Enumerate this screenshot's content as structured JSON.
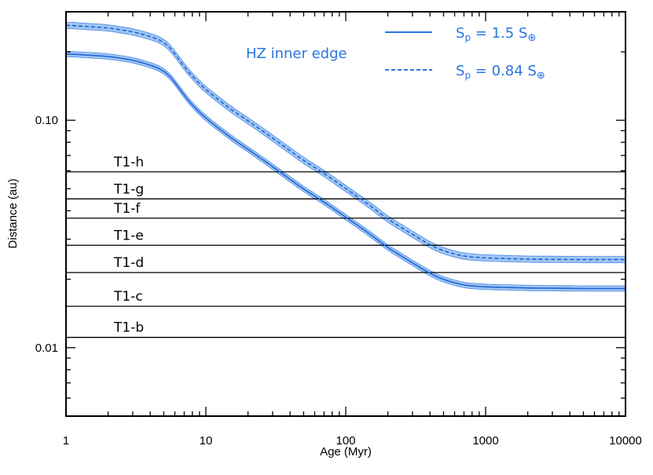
{
  "chart_data": {
    "type": "line",
    "xscale": "log",
    "yscale": "log",
    "xlim": [
      1,
      10000
    ],
    "ylim": [
      0.005,
      0.3
    ],
    "xlabel": "Age (Myr)",
    "ylabel": "Distance (au)",
    "xticks": [
      {
        "value": 1,
        "label": "1"
      },
      {
        "value": 10,
        "label": "10"
      },
      {
        "value": 100,
        "label": "100"
      },
      {
        "value": 1000,
        "label": "1000"
      },
      {
        "value": 10000,
        "label": "10000"
      }
    ],
    "yticks": [
      {
        "value": 0.01,
        "label": "0.01"
      },
      {
        "value": 0.1,
        "label": "0.10"
      }
    ],
    "annotation": "HZ inner edge",
    "legend": [
      {
        "label_main": "S",
        "label_sub": "p",
        "label_rest": " = 1.5 S",
        "symbol": "⊕",
        "style": "solid"
      },
      {
        "label_main": "S",
        "label_sub": "p",
        "label_rest": " = 0.84 S",
        "symbol": "⊕",
        "style": "dashed"
      }
    ],
    "planets": [
      {
        "name": "T1-b",
        "distance": 0.0111
      },
      {
        "name": "T1-c",
        "distance": 0.0152
      },
      {
        "name": "T1-d",
        "distance": 0.0214
      },
      {
        "name": "T1-e",
        "distance": 0.0282
      },
      {
        "name": "T1-f",
        "distance": 0.0371
      },
      {
        "name": "T1-g",
        "distance": 0.0451
      },
      {
        "name": "T1-h",
        "distance": 0.0593
      }
    ],
    "series": [
      {
        "name": "Sp = 1.5 S⊕",
        "style": "solid",
        "x": [
          1,
          2,
          3,
          4,
          5,
          5.8,
          7,
          8.5,
          10,
          15,
          20,
          30,
          50,
          70,
          100,
          150,
          200,
          300,
          400,
          500,
          700,
          1000,
          2000,
          5000,
          10000
        ],
        "y": [
          0.196,
          0.191,
          0.184,
          0.175,
          0.166,
          0.152,
          0.128,
          0.112,
          0.102,
          0.084,
          0.0745,
          0.0625,
          0.0498,
          0.0437,
          0.0375,
          0.0315,
          0.0275,
          0.0236,
          0.0212,
          0.0199,
          0.0188,
          0.0185,
          0.0183,
          0.0182,
          0.0182
        ],
        "band_halfwidth_decades": 0.012
      },
      {
        "name": "Sp = 0.84 S⊕",
        "style": "dashed",
        "x": [
          1,
          2,
          3,
          4,
          5,
          5.8,
          7,
          8.5,
          10,
          15,
          20,
          30,
          50,
          70,
          100,
          150,
          200,
          300,
          400,
          500,
          700,
          1000,
          2000,
          5000,
          10000
        ],
        "y": [
          0.262,
          0.255,
          0.245,
          0.234,
          0.222,
          0.203,
          0.171,
          0.15,
          0.136,
          0.112,
          0.0995,
          0.0835,
          0.0665,
          0.0584,
          0.0501,
          0.0421,
          0.0367,
          0.0315,
          0.0283,
          0.0266,
          0.0252,
          0.0248,
          0.0245,
          0.0244,
          0.0244
        ],
        "band_halfwidth_decades": 0.014
      }
    ]
  }
}
